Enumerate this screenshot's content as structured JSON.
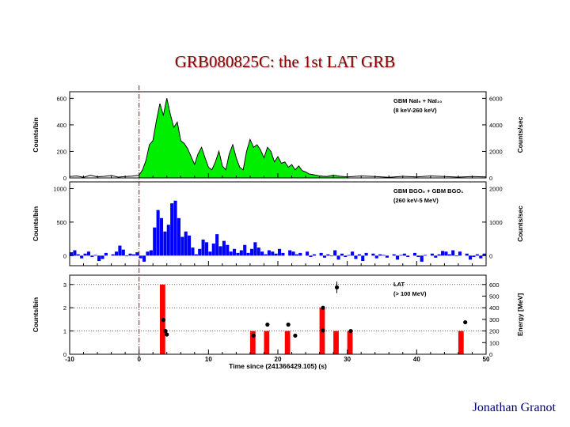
{
  "slide": {
    "title": "GRB080825C: the 1st  LAT GRB",
    "author": "Jonathan Granot"
  },
  "chart_data": [
    {
      "type": "area",
      "panel": "top",
      "legend_lines": [
        "GBM NaI₉ + NaI₁₀",
        "(8 keV-260 keV)"
      ],
      "ylabel": "Counts/bin",
      "ylim": [
        0,
        650
      ],
      "yticks": [
        0,
        200,
        400,
        600
      ],
      "right_ylabel": "Counts/sec",
      "right_yticks": [
        "0",
        "2000",
        "4000",
        "6000"
      ],
      "fill_color": "#00ee00",
      "series": [
        {
          "x": [
            -10,
            -9,
            -8,
            -7,
            -6,
            -5,
            -4,
            -3,
            -2,
            -1,
            0,
            0.5,
            1,
            1.5,
            2,
            2.5,
            3,
            3.5,
            4,
            4.5,
            5,
            5.5,
            6,
            6.5,
            7,
            7.5,
            8,
            8.5,
            9,
            9.5,
            10,
            10.5,
            11,
            11.5,
            12,
            12.5,
            13,
            13.5,
            14,
            14.5,
            15,
            15.5,
            16,
            16.5,
            17,
            17.5,
            18,
            18.5,
            19,
            19.5,
            20,
            20.5,
            21,
            21.5,
            22,
            22.5,
            23,
            23.5,
            24,
            24.5,
            25,
            26,
            27,
            28,
            29,
            30,
            32,
            34,
            36,
            38,
            40,
            42,
            44,
            46,
            48,
            50
          ],
          "y": [
            10,
            15,
            5,
            20,
            8,
            12,
            18,
            6,
            10,
            14,
            20,
            60,
            130,
            250,
            280,
            430,
            560,
            470,
            600,
            480,
            380,
            420,
            280,
            260,
            220,
            160,
            100,
            180,
            230,
            150,
            80,
            60,
            120,
            200,
            90,
            60,
            180,
            250,
            150,
            80,
            60,
            200,
            290,
            230,
            250,
            210,
            150,
            230,
            200,
            120,
            160,
            110,
            120,
            80,
            100,
            60,
            90,
            55,
            45,
            30,
            25,
            15,
            10,
            20,
            12,
            8,
            15,
            10,
            5,
            12,
            8,
            15,
            10,
            6,
            10,
            8
          ]
        }
      ]
    },
    {
      "type": "bar",
      "panel": "middle",
      "legend_lines": [
        "GBM BGO₀ + GBM BGO₁",
        "(260 keV-5 MeV)"
      ],
      "ylabel": "Counts/bin",
      "ylim": [
        -150,
        1100
      ],
      "yticks": [
        0,
        500,
        1000
      ],
      "right_ylabel": "Counts/sec",
      "right_yticks": [
        "0",
        "1000",
        "2000"
      ],
      "bar_color": "#0000ff",
      "bin_width": 0.5,
      "series": [
        {
          "x": [
            -10,
            -9.5,
            -9,
            -8.5,
            -8,
            -7.5,
            -7,
            -6.5,
            -6,
            -5.5,
            -5,
            -4.5,
            -4,
            -3.5,
            -3,
            -2.5,
            -2,
            -1.5,
            -1,
            -0.5,
            0,
            0.5,
            1,
            1.5,
            2,
            2.5,
            3,
            3.5,
            4,
            4.5,
            5,
            5.5,
            6,
            6.5,
            7,
            7.5,
            8,
            8.5,
            9,
            9.5,
            10,
            10.5,
            11,
            11.5,
            12,
            12.5,
            13,
            13.5,
            14,
            14.5,
            15,
            15.5,
            16,
            16.5,
            17,
            17.5,
            18,
            18.5,
            19,
            19.5,
            20,
            20.5,
            21,
            21.5,
            22,
            22.5,
            23,
            23.5,
            24,
            24.5,
            25,
            25.5,
            26,
            26.5,
            27,
            27.5,
            28,
            28.5,
            29,
            29.5,
            30,
            30.5,
            31,
            31.5,
            32,
            32.5,
            33,
            33.5,
            34,
            34.5,
            35,
            35.5,
            36,
            36.5,
            37,
            37.5,
            38,
            38.5,
            39,
            39.5,
            40,
            40.5,
            41,
            41.5,
            42,
            42.5,
            43,
            43.5,
            44,
            44.5,
            45,
            45.5,
            46,
            46.5,
            47,
            47.5,
            48,
            48.5,
            49,
            49.5
          ],
          "y": [
            50,
            80,
            20,
            -40,
            30,
            60,
            -20,
            10,
            -80,
            -50,
            40,
            0,
            20,
            60,
            150,
            90,
            -10,
            30,
            20,
            50,
            -40,
            -90,
            60,
            80,
            420,
            680,
            560,
            360,
            460,
            780,
            820,
            560,
            280,
            360,
            300,
            120,
            20,
            100,
            240,
            200,
            60,
            180,
            320,
            140,
            220,
            160,
            60,
            100,
            40,
            80,
            160,
            40,
            100,
            200,
            120,
            60,
            20,
            80,
            60,
            30,
            100,
            40,
            0,
            80,
            60,
            20,
            40,
            0,
            60,
            -20,
            20,
            0,
            40,
            -30,
            20,
            -10,
            80,
            -60,
            30,
            -20,
            10,
            60,
            -50,
            20,
            -80,
            40,
            0,
            30,
            -40,
            20,
            10,
            -30,
            0,
            20,
            -60,
            10,
            30,
            -20,
            0,
            40,
            -20,
            -90,
            10,
            0,
            30,
            -30,
            20,
            70,
            60,
            20,
            80,
            -10,
            60,
            0,
            30,
            -60,
            -20,
            20,
            -40,
            30
          ]
        }
      ]
    },
    {
      "type": "bar",
      "panel": "bottom",
      "legend_lines": [
        "LAT",
        "(> 100 MeV)"
      ],
      "ylabel": "Counts/bin",
      "ylim": [
        0,
        3.4
      ],
      "yticks": [
        0,
        1,
        2,
        3
      ],
      "right_ylabel": "Energy [MeV]",
      "right_ylim": [
        0,
        680
      ],
      "right_yticks": [
        0,
        100,
        200,
        300,
        400,
        500,
        600
      ],
      "bar_color": "#ff0000",
      "bin_width": 1,
      "series": [
        {
          "name": "",
          "x": [
            3,
            16,
            18,
            21,
            26,
            28,
            30,
            46
          ],
          "y": [
            3,
            1,
            1,
            1,
            2,
            1,
            1,
            1
          ]
        }
      ],
      "points": {
        "energy_mev": [
          [
            3.5,
            295
          ],
          [
            3.8,
            200
          ],
          [
            4.0,
            170
          ],
          [
            16.5,
            160
          ],
          [
            18.5,
            255
          ],
          [
            21.5,
            255
          ],
          [
            22.5,
            160
          ],
          [
            26.5,
            400
          ],
          [
            26.5,
            205
          ],
          [
            28.5,
            575
          ],
          [
            30.5,
            200
          ],
          [
            47.0,
            275
          ]
        ],
        "errorbar": {
          "x": 28.5,
          "low": 525,
          "high": 625
        }
      },
      "xlabel": "Time since (241366429.105) (s)",
      "xlim": [
        -10,
        50
      ],
      "xticks": [
        -10,
        0,
        10,
        20,
        30,
        40,
        50
      ],
      "trigger_line_x": 0,
      "grid": "dotted-horizontal"
    }
  ]
}
